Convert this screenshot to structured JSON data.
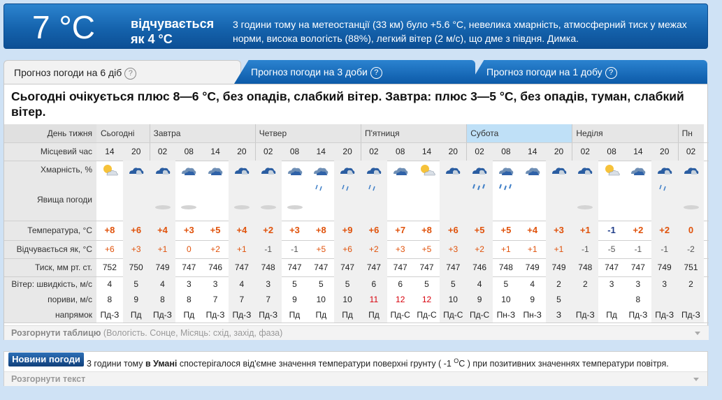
{
  "header": {
    "temperature": "7 °C",
    "feels_like": "відчувається як 4 °C",
    "description": "3 години тому на метеостанції (33 км) було +5.6 °C, невелика хмарність, атмосферний тиск у межах норми, висока вологість (88%), легкий вітер (2 м/с), що дме з півдня. Димка."
  },
  "tabs": [
    {
      "label": "Прогноз погоди на 6 діб",
      "active": true
    },
    {
      "label": "Прогноз погоди на 3 доби",
      "active": false
    },
    {
      "label": "Прогноз погоди на 1 добу",
      "active": false
    }
  ],
  "help_glyph": "?",
  "summary": "Сьогодні очікується плюс 8—6 °C, без опадів, слабкий вітер. Завтра: плюс 3—5 °C, без опадів, туман, слабкий вітер.",
  "row_labels": {
    "day": "День тижня",
    "time": "Місцевий час",
    "cloud": "Хмарність, %",
    "phenomena": "Явища погоди",
    "temp": "Температура, °C",
    "feels": "Відчувається як, °C",
    "pressure": "Тиск, мм рт. ст.",
    "wind": "Вітер: швидкість, м/с",
    "gusts": "пориви, м/с",
    "direction": "напрямок"
  },
  "days": [
    {
      "name": "Сьогодні",
      "cols": 2,
      "sat": false
    },
    {
      "name": "Завтра",
      "cols": 4,
      "sat": false
    },
    {
      "name": "Четвер",
      "cols": 4,
      "sat": false
    },
    {
      "name": "П'ятниця",
      "cols": 4,
      "sat": false
    },
    {
      "name": "Субота",
      "cols": 4,
      "sat": true
    },
    {
      "name": "Неділя",
      "cols": 4,
      "sat": false
    },
    {
      "name": "Пн",
      "cols": 1,
      "sat": false
    }
  ],
  "columns": [
    {
      "time": "14",
      "icon": "sun-cloud-icon",
      "phen": "",
      "temp": "+8",
      "feels": "+6",
      "press": "752",
      "wind": "4",
      "gust": "8",
      "dir": "Пд-З"
    },
    {
      "time": "20",
      "icon": "night-cloud-icon",
      "phen": "",
      "temp": "+6",
      "feels": "+3",
      "press": "750",
      "wind": "5",
      "gust": "9",
      "dir": "Пд"
    },
    {
      "time": "02",
      "icon": "night-cloud-icon",
      "phen": "fog",
      "temp": "+4",
      "feels": "+1",
      "press": "749",
      "wind": "4",
      "gust": "8",
      "dir": "Пд-З"
    },
    {
      "time": "08",
      "icon": "cloud-icon",
      "phen": "fog",
      "temp": "+3",
      "feels": "0",
      "press": "747",
      "wind": "3",
      "gust": "8",
      "dir": "Пд"
    },
    {
      "time": "14",
      "icon": "cloud-icon",
      "phen": "",
      "temp": "+5",
      "feels": "+2",
      "press": "746",
      "wind": "3",
      "gust": "7",
      "dir": "Пд-З"
    },
    {
      "time": "20",
      "icon": "night-cloud-icon",
      "phen": "fog",
      "temp": "+4",
      "feels": "+1",
      "press": "747",
      "wind": "4",
      "gust": "7",
      "dir": "Пд-З"
    },
    {
      "time": "02",
      "icon": "night-cloud-icon",
      "phen": "fog",
      "temp": "+2",
      "feels": "-1",
      "press": "748",
      "wind": "3",
      "gust": "7",
      "dir": "Пд-З"
    },
    {
      "time": "08",
      "icon": "cloud-icon",
      "phen": "fog",
      "temp": "+3",
      "feels": "-1",
      "press": "747",
      "wind": "5",
      "gust": "9",
      "dir": "Пд"
    },
    {
      "time": "14",
      "icon": "cloud-icon",
      "phen": "drizzle",
      "temp": "+8",
      "feels": "+5",
      "press": "747",
      "wind": "5",
      "gust": "10",
      "dir": "Пд"
    },
    {
      "time": "20",
      "icon": "night-cloud-icon",
      "phen": "drizzle",
      "temp": "+9",
      "feels": "+6",
      "press": "747",
      "wind": "5",
      "gust": "10",
      "dir": "Пд"
    },
    {
      "time": "02",
      "icon": "night-cloud-icon",
      "phen": "drizzle",
      "temp": "+6",
      "feels": "+2",
      "press": "747",
      "wind": "6",
      "gust": "11",
      "dir": "Пд",
      "gustRed": true
    },
    {
      "time": "08",
      "icon": "cloud-icon",
      "phen": "",
      "temp": "+7",
      "feels": "+3",
      "press": "747",
      "wind": "6",
      "gust": "12",
      "dir": "Пд-С",
      "gustRed": true
    },
    {
      "time": "14",
      "icon": "sun-cloud-icon",
      "phen": "",
      "temp": "+8",
      "feels": "+5",
      "press": "747",
      "wind": "5",
      "gust": "12",
      "dir": "Пд-С",
      "gustRed": true
    },
    {
      "time": "20",
      "icon": "night-cloud-icon",
      "phen": "",
      "temp": "+6",
      "feels": "+3",
      "press": "747",
      "wind": "5",
      "gust": "10",
      "dir": "Пд-С"
    },
    {
      "time": "02",
      "icon": "night-cloud-icon",
      "phen": "rain",
      "temp": "+5",
      "feels": "+2",
      "press": "746",
      "wind": "4",
      "gust": "9",
      "dir": "Пд-С"
    },
    {
      "time": "08",
      "icon": "cloud-icon",
      "phen": "rain",
      "temp": "+5",
      "feels": "+1",
      "press": "748",
      "wind": "5",
      "gust": "10",
      "dir": "Пн-З"
    },
    {
      "time": "14",
      "icon": "cloud-icon",
      "phen": "",
      "temp": "+4",
      "feels": "+1",
      "press": "749",
      "wind": "4",
      "gust": "9",
      "dir": "Пн-З"
    },
    {
      "time": "20",
      "icon": "night-cloud-icon",
      "phen": "",
      "temp": "+3",
      "feels": "+1",
      "press": "749",
      "wind": "2",
      "gust": "5",
      "dir": "З"
    },
    {
      "time": "02",
      "icon": "night-cloud-icon",
      "phen": "fog",
      "temp": "+1",
      "feels": "-1",
      "press": "748",
      "wind": "2",
      "gust": "",
      "dir": "Пд-З"
    },
    {
      "time": "08",
      "icon": "sun-cloud-icon",
      "phen": "",
      "temp": "-1",
      "feels": "-5",
      "press": "747",
      "wind": "3",
      "gust": "",
      "dir": "Пд"
    },
    {
      "time": "14",
      "icon": "cloud-icon",
      "phen": "",
      "temp": "+2",
      "feels": "-1",
      "press": "747",
      "wind": "3",
      "gust": "8",
      "dir": "Пд-З"
    },
    {
      "time": "20",
      "icon": "night-cloud-icon",
      "phen": "drizzle",
      "temp": "+2",
      "feels": "-1",
      "press": "749",
      "wind": "3",
      "gust": "",
      "dir": "Пд-З"
    },
    {
      "time": "02",
      "icon": "night-cloud-icon",
      "phen": "fog",
      "temp": "0",
      "feels": "-2",
      "press": "751",
      "wind": "2",
      "gust": "",
      "dir": "Пд-З"
    }
  ],
  "expand_table": "Розгорнути таблицю",
  "expand_table_note": "(Вологість. Сонце, Місяць: схід, захід, фаза)",
  "news": {
    "badge": "Новини погоди",
    "text_before": "3 години тому ",
    "text_place": "в Умані",
    "text_after": " спостерігалося від'ємне значення температури поверхні грунту ( -1 ",
    "text_unit": "O",
    "text_unit2": "C",
    "text_end": " ) при позитивних значеннях температури повітря.",
    "expand": "Розгорнути текст"
  },
  "colors": {
    "header_blue": "#1563ad",
    "temp_plus": "#e0520b",
    "temp_minus": "#1f3c88",
    "saturday": "#bfe0f7"
  }
}
